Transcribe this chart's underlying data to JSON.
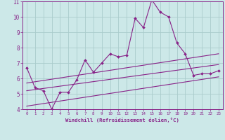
{
  "xlabel": "Windchill (Refroidissement éolien,°C)",
  "ylabel": "",
  "x_data": [
    0,
    1,
    2,
    3,
    4,
    5,
    6,
    7,
    8,
    9,
    10,
    11,
    12,
    13,
    14,
    15,
    16,
    17,
    18,
    19,
    20,
    21,
    22,
    23
  ],
  "y_data": [
    6.7,
    5.4,
    5.2,
    4.0,
    5.1,
    5.1,
    5.9,
    7.2,
    6.4,
    7.0,
    7.6,
    7.4,
    7.5,
    9.9,
    9.3,
    11.1,
    10.3,
    10.0,
    8.3,
    7.6,
    6.2,
    6.3,
    6.3,
    6.5
  ],
  "line_color": "#882288",
  "bg_color": "#cce8e8",
  "plot_bg_color": "#cce8e8",
  "grid_color": "#aacccc",
  "xlim": [
    -0.5,
    23.5
  ],
  "ylim": [
    4,
    11
  ],
  "yticks": [
    4,
    5,
    6,
    7,
    8,
    9,
    10,
    11
  ],
  "xticks": [
    0,
    1,
    2,
    3,
    4,
    5,
    6,
    7,
    8,
    9,
    10,
    11,
    12,
    13,
    14,
    15,
    16,
    17,
    18,
    19,
    20,
    21,
    22,
    23
  ],
  "reg_upper_start": 5.7,
  "reg_upper_end": 7.6,
  "reg_mid_start": 5.2,
  "reg_mid_end": 6.9,
  "reg_lower_start": 4.2,
  "reg_lower_end": 6.1
}
